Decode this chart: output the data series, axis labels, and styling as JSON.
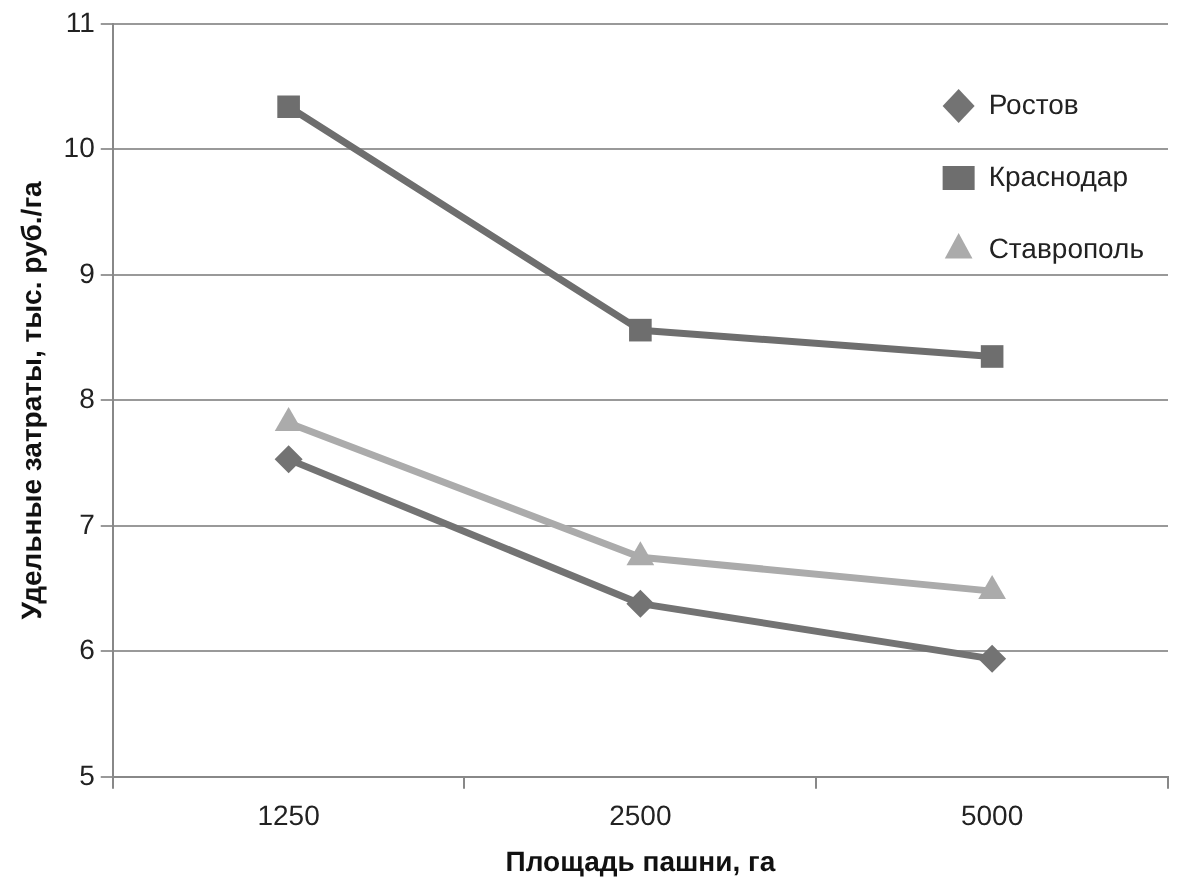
{
  "chart_data": {
    "type": "line",
    "xlabel": "Площадь пашни, га",
    "ylabel": "Удельные затраты, тыс. руб./га",
    "categories": [
      "1250",
      "2500",
      "5000"
    ],
    "series": [
      {
        "name": "Ростов",
        "color": "#737373",
        "marker": "diamond",
        "values": [
          7.53,
          6.38,
          5.94
        ]
      },
      {
        "name": "Краснодар",
        "color": "#6e6e6e",
        "marker": "square",
        "values": [
          10.34,
          8.56,
          8.35
        ]
      },
      {
        "name": "Ставрополь",
        "color": "#ababab",
        "marker": "triangle",
        "values": [
          7.82,
          6.75,
          6.48
        ]
      }
    ],
    "ylim": [
      5,
      11
    ],
    "yticks": [
      5,
      6,
      7,
      8,
      9,
      10,
      11
    ],
    "grid": "y",
    "legend": "top right",
    "line_style": "solid"
  }
}
